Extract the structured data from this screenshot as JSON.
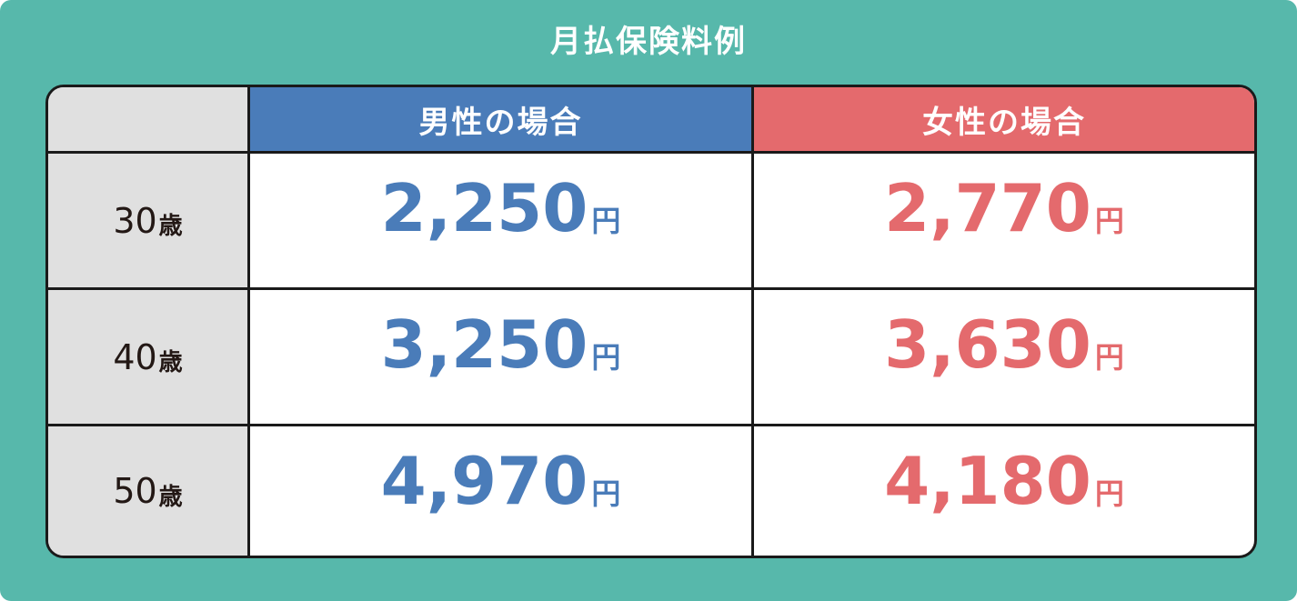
{
  "title": "月払保険料例",
  "headers": {
    "male": "男性の場合",
    "female": "女性の場合"
  },
  "currency_unit": "円",
  "age_unit": "歳",
  "colors": {
    "background": "#57b8ab",
    "male": "#4a7cb9",
    "female": "#e46a6d",
    "row_header": "#e0e0e0"
  },
  "rows": [
    {
      "age": "30",
      "male": "2,250",
      "female": "2,770"
    },
    {
      "age": "40",
      "male": "3,250",
      "female": "3,630"
    },
    {
      "age": "50",
      "male": "4,970",
      "female": "4,180"
    }
  ]
}
